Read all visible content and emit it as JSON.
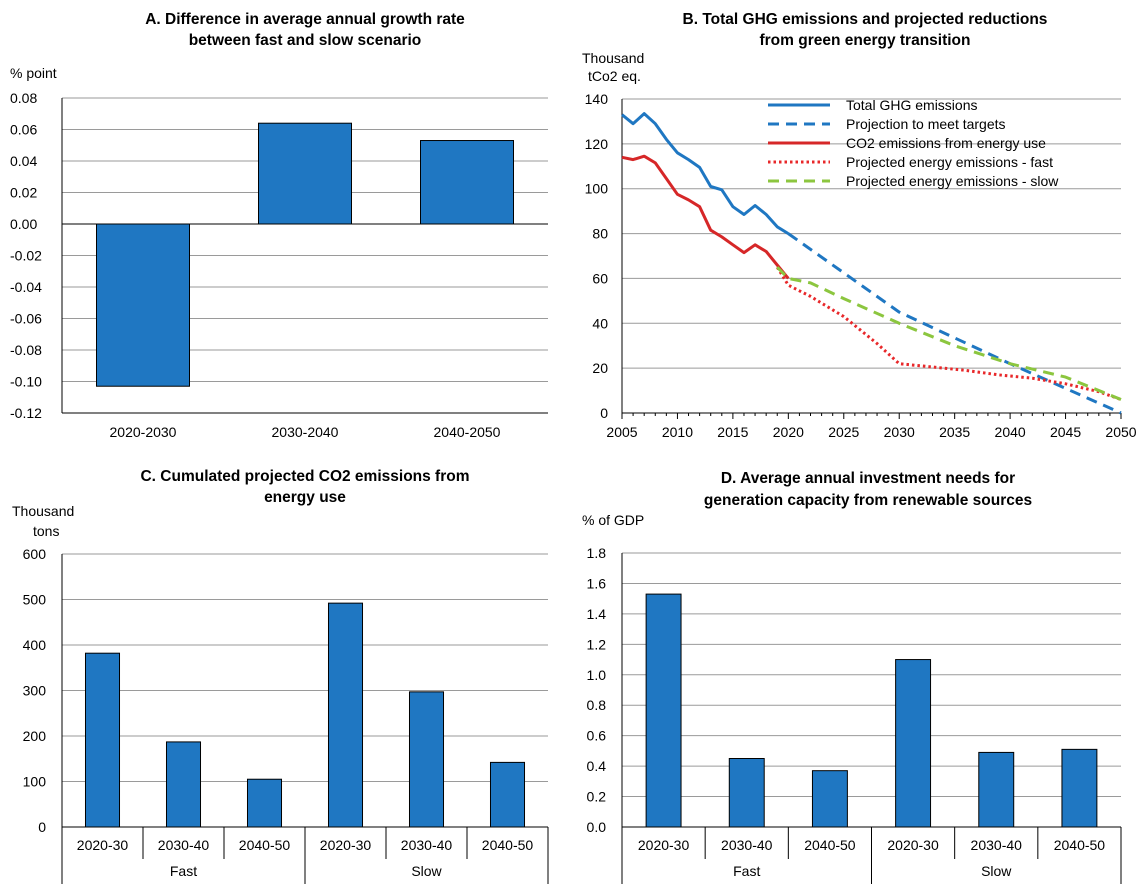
{
  "chart_data": [
    {
      "panel": "A",
      "type": "bar",
      "title": [
        "A. Difference in average annual growth rate",
        "between fast and slow scenario"
      ],
      "ylabel": "% point",
      "categories": [
        "2020-2030",
        "2030-2040",
        "2040-2050"
      ],
      "values": [
        -0.103,
        0.064,
        0.053
      ],
      "ylim": [
        -0.12,
        0.08
      ],
      "yticks": [
        "0.08",
        "0.06",
        "0.04",
        "0.02",
        "0.00",
        "-0.02",
        "-0.04",
        "-0.06",
        "-0.08",
        "-0.10",
        "-0.12"
      ],
      "bar_color": "#1f77c2",
      "grid": true
    },
    {
      "panel": "B",
      "type": "line",
      "title": [
        "B. Total GHG emissions and projected reductions",
        "from green energy transition"
      ],
      "ylabel": [
        "Thousand",
        "tCo2 eq."
      ],
      "xlim": [
        2005,
        2050
      ],
      "ylim": [
        0,
        140
      ],
      "xticks": [
        "2005",
        "2010",
        "2015",
        "2020",
        "2025",
        "2030",
        "2035",
        "2040",
        "2045",
        "2050"
      ],
      "yticks": [
        "140",
        "120",
        "100",
        "80",
        "60",
        "40",
        "20",
        "0"
      ],
      "grid": true,
      "legend_position": "top-right",
      "series": [
        {
          "name": "Total GHG emissions",
          "color": "#1f77c2",
          "dash": "solid",
          "points": [
            [
              2005,
              133
            ],
            [
              2006,
              129
            ],
            [
              2007,
              133.5
            ],
            [
              2008,
              129
            ],
            [
              2009,
              122
            ],
            [
              2010,
              116
            ],
            [
              2011,
              113
            ],
            [
              2012,
              109.5
            ],
            [
              2013,
              101
            ],
            [
              2014,
              99.5
            ],
            [
              2015,
              92
            ],
            [
              2016,
              88.5
            ],
            [
              2017,
              92.5
            ],
            [
              2018,
              88.5
            ],
            [
              2019,
              83
            ],
            [
              2020,
              80
            ]
          ]
        },
        {
          "name": "Projection to meet targets",
          "color": "#1f77c2",
          "dash": "dashed",
          "points": [
            [
              2020,
              80
            ],
            [
              2030,
              45
            ],
            [
              2040,
              22
            ],
            [
              2050,
              0
            ]
          ]
        },
        {
          "name": "CO2 emissions from energy use",
          "color": "#d62728",
          "dash": "solid",
          "points": [
            [
              2005,
              114
            ],
            [
              2006,
              113
            ],
            [
              2007,
              114.5
            ],
            [
              2008,
              111.5
            ],
            [
              2009,
              104.5
            ],
            [
              2010,
              97.5
            ],
            [
              2011,
              95
            ],
            [
              2012,
              92
            ],
            [
              2013,
              81.5
            ],
            [
              2014,
              78.5
            ],
            [
              2015,
              75
            ],
            [
              2016,
              71.5
            ],
            [
              2017,
              75
            ],
            [
              2018,
              72
            ],
            [
              2019,
              66
            ],
            [
              2020,
              60
            ]
          ]
        },
        {
          "name": "Projected energy emissions - fast",
          "color": "#e8282a",
          "dash": "dotted",
          "points": [
            [
              2019,
              65
            ],
            [
              2020,
              57
            ],
            [
              2022,
              52
            ],
            [
              2025,
              43
            ],
            [
              2028,
              31
            ],
            [
              2030,
              22
            ],
            [
              2033,
              20.5
            ],
            [
              2036,
              19
            ],
            [
              2039,
              17
            ],
            [
              2042,
              15.5
            ],
            [
              2045,
              13
            ],
            [
              2048,
              9.5
            ],
            [
              2050,
              6
            ]
          ]
        },
        {
          "name": "Projected energy emissions - slow",
          "color": "#8cc63f",
          "dash": "dashed",
          "points": [
            [
              2019,
              65
            ],
            [
              2020,
              60
            ],
            [
              2022,
              58
            ],
            [
              2025,
              51
            ],
            [
              2030,
              40
            ],
            [
              2035,
              30
            ],
            [
              2040,
              22
            ],
            [
              2045,
              16
            ],
            [
              2050,
              6
            ]
          ]
        }
      ]
    },
    {
      "panel": "C",
      "type": "bar",
      "title": [
        "C. Cumulated projected CO2 emissions from",
        "energy use"
      ],
      "ylabel": [
        "Thousand",
        "tons"
      ],
      "categories": [
        "2020-30",
        "2030-40",
        "2040-50",
        "2020-30",
        "2030-40",
        "2040-50"
      ],
      "groups": [
        "Fast",
        "Slow"
      ],
      "values": [
        382,
        187,
        105,
        492,
        297,
        142
      ],
      "ylim": [
        0,
        600
      ],
      "yticks": [
        "600",
        "500",
        "400",
        "300",
        "200",
        "100",
        "0"
      ],
      "bar_color": "#1f77c2",
      "grid": true
    },
    {
      "panel": "D",
      "type": "bar",
      "title": [
        "D. Average annual investment needs for",
        "generation capacity from renewable sources"
      ],
      "ylabel": "% of GDP",
      "categories": [
        "2020-30",
        "2030-40",
        "2040-50",
        "2020-30",
        "2030-40",
        "2040-50"
      ],
      "groups": [
        "Fast",
        "Slow"
      ],
      "values": [
        1.53,
        0.45,
        0.37,
        1.1,
        0.49,
        0.51
      ],
      "ylim": [
        0,
        1.8
      ],
      "yticks": [
        "1.8",
        "1.6",
        "1.4",
        "1.2",
        "1.0",
        "0.8",
        "0.6",
        "0.4",
        "0.2",
        "0.0"
      ],
      "bar_color": "#1f77c2",
      "grid": true
    }
  ]
}
